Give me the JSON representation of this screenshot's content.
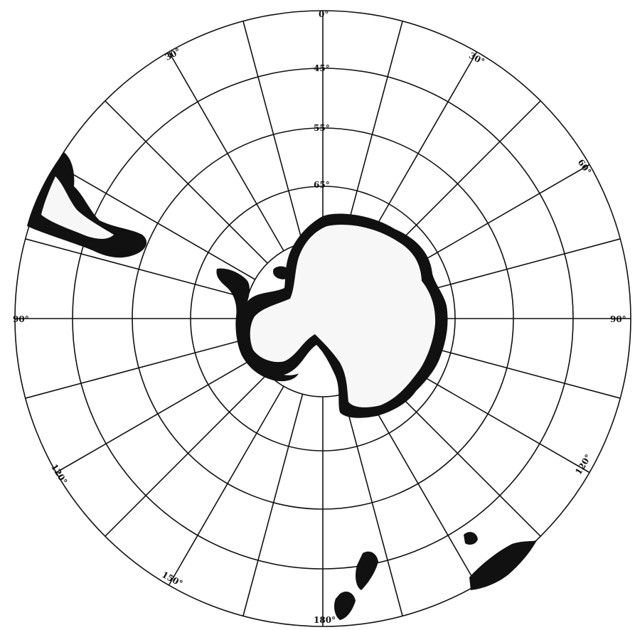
{
  "map": {
    "projection": "polar azimuthal (south pole)",
    "longitude_labels": {
      "top": "0°",
      "upper_left": "30°",
      "upper_right": "30°",
      "right_upper": "60°",
      "left": "90°",
      "right": "90°",
      "lower_left": "120°",
      "lower_right": "120°",
      "bottom_left": "150°",
      "bottom": "180°"
    },
    "latitude_labels": [
      "45°",
      "55°",
      "65°"
    ],
    "colors": {
      "land": "#111111",
      "ice_interior": "#f7f7f7",
      "grid": "#111111",
      "background": "#ffffff"
    },
    "landmasses": [
      "antarctica",
      "south-america",
      "australia",
      "new-zealand"
    ]
  }
}
